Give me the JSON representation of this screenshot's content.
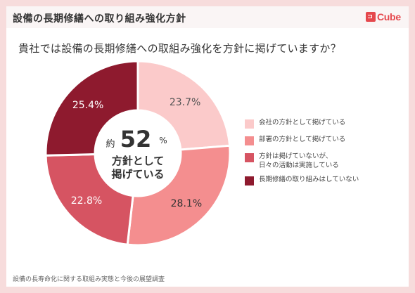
{
  "header": {
    "title": "設備の長期修繕への取り組み強化方針",
    "logo_text": "Cube",
    "logo_mark": "it"
  },
  "question": "貴社では設備の長期修繕への取組み強化を方針に掲げていますか？",
  "center": {
    "prefix": "約",
    "value": "52",
    "unit": "%",
    "line1": "方針として",
    "line2": "掲げている"
  },
  "chart_data": {
    "type": "pie",
    "categories": [
      "会社の方針として掲げている",
      "部署の方針として掲げている",
      "方針は掲げていないが、日々の活動は実施している",
      "長期修繕の取り組みはしていない"
    ],
    "values": [
      23.7,
      28.1,
      22.8,
      25.4
    ],
    "labels": [
      "23.7%",
      "28.1%",
      "22.8%",
      "25.4%"
    ],
    "colors": [
      "#fbcaca",
      "#f48e8f",
      "#d65462",
      "#8e1a2e"
    ],
    "label_colors": [
      "#555555",
      "#333333",
      "#ffffff",
      "#ffffff"
    ],
    "start": "12 o'clock",
    "direction": "clockwise",
    "donut": true
  },
  "legend": [
    {
      "label": "会社の方針として掲げている",
      "color": "#fbcaca"
    },
    {
      "label": "部署の方針として掲げている",
      "color": "#f48e8f"
    },
    {
      "label": "方針は掲げていないが、\n日々の活動は実施している",
      "color": "#d65462"
    },
    {
      "label": "長期修繕の取り組みはしていない",
      "color": "#8e1a2e"
    }
  ],
  "footer": "設備の長寿命化に関する取組み実態と今後の展望調査"
}
